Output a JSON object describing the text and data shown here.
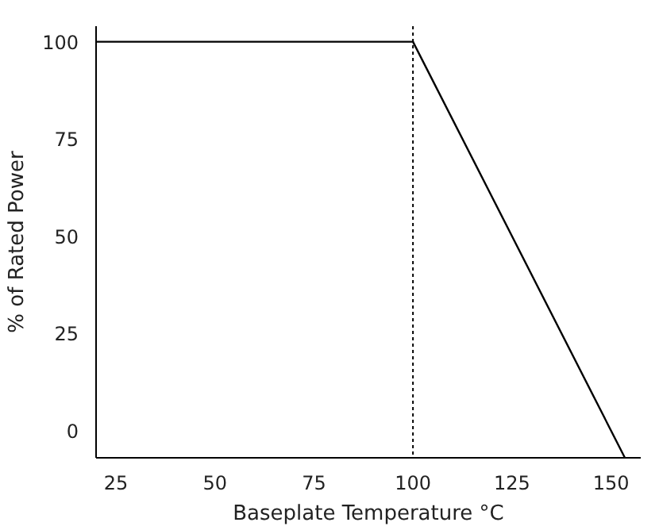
{
  "chart_data": {
    "type": "line",
    "xlabel": "Baseplate Temperature °C",
    "ylabel": "% of Rated Power",
    "x": [
      20,
      100,
      150,
      153.5
    ],
    "series": [
      {
        "color": "#000000",
        "values": [
          100,
          100,
          0,
          -7
        ]
      }
    ],
    "xlim": [
      20,
      157.5
    ],
    "ylim": [
      -7,
      104
    ],
    "xticks": [
      25,
      50,
      75,
      100,
      125,
      150
    ],
    "yticks": [
      0,
      25,
      50,
      75,
      100
    ],
    "ref_lines": [
      {
        "axis": "x",
        "value": 100,
        "color": "#000000",
        "line_style": "dotted"
      }
    ],
    "grid": false,
    "marker": "none",
    "line_style": "solid"
  }
}
